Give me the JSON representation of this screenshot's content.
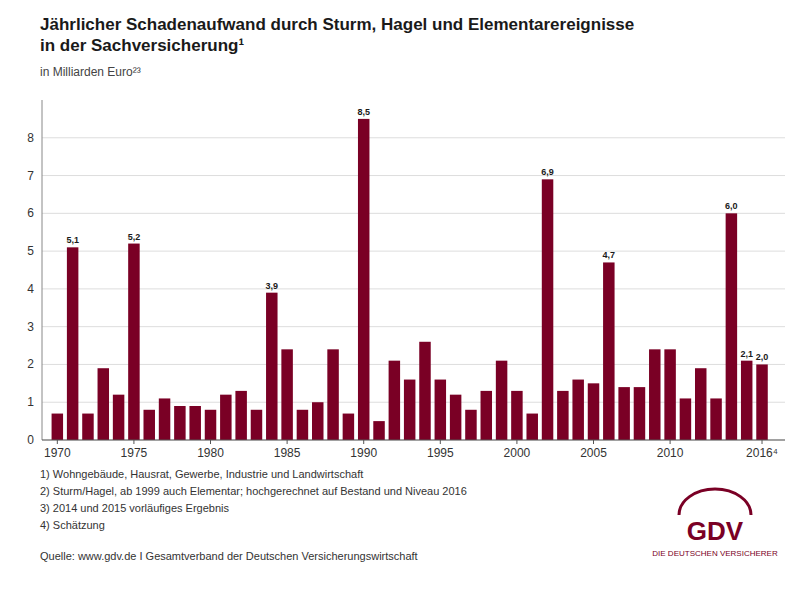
{
  "chart_data": {
    "type": "bar",
    "title": [
      "Jährlicher Schadenaufwand durch Sturm, Hagel und Elementarereignisse",
      "in der Sachversicherung¹"
    ],
    "subtitle": "in Milliarden Euro²³",
    "x": [
      1970,
      1971,
      1972,
      1973,
      1974,
      1975,
      1976,
      1977,
      1978,
      1979,
      1980,
      1981,
      1982,
      1983,
      1984,
      1985,
      1986,
      1987,
      1988,
      1989,
      1990,
      1991,
      1992,
      1993,
      1994,
      1995,
      1996,
      1997,
      1998,
      1999,
      2000,
      2001,
      2002,
      2003,
      2004,
      2005,
      2006,
      2007,
      2008,
      2009,
      2010,
      2011,
      2012,
      2013,
      2014,
      2015,
      2016
    ],
    "values": [
      0.7,
      5.1,
      0.7,
      1.9,
      1.2,
      5.2,
      0.8,
      1.1,
      0.9,
      0.9,
      0.8,
      1.2,
      1.3,
      0.8,
      3.9,
      2.4,
      0.8,
      1.0,
      2.4,
      0.7,
      8.5,
      0.5,
      2.1,
      1.6,
      2.6,
      1.6,
      1.2,
      0.8,
      1.3,
      2.1,
      1.3,
      0.7,
      6.9,
      1.3,
      1.6,
      1.5,
      4.7,
      1.4,
      1.4,
      2.4,
      2.4,
      1.1,
      1.9,
      1.1,
      6.0,
      2.1,
      2.0
    ],
    "value_labels": [
      null,
      "5,1",
      null,
      null,
      null,
      "5,2",
      null,
      null,
      null,
      null,
      null,
      null,
      null,
      null,
      "3,9",
      null,
      null,
      null,
      null,
      null,
      "8,5",
      null,
      null,
      null,
      null,
      null,
      null,
      null,
      null,
      null,
      null,
      null,
      "6,9",
      null,
      null,
      null,
      "4,7",
      null,
      null,
      null,
      null,
      null,
      null,
      null,
      "6,0",
      "2,1",
      "2,0"
    ],
    "data_labels": true,
    "color": "#7a0025",
    "xlim": [
      1969,
      2017.5
    ],
    "xticks": [
      1970,
      1975,
      1980,
      1985,
      1990,
      1995,
      2000,
      2005,
      2010,
      {
        "value": 2016,
        "label": "2016⁴"
      }
    ],
    "ylim": [
      0,
      9
    ],
    "yticks": [
      0,
      1,
      2,
      3,
      4,
      5,
      6,
      7,
      8
    ],
    "grid": true,
    "annotations": [
      "1)  Wohngebäude, Hausrat, Gewerbe, Industrie und Landwirtschaft",
      "2)  Sturm/Hagel, ab 1999 auch Elementar; hochgerechnet auf Bestand und Niveau 2016",
      "3)  2014 und 2015 vorläufiges Ergebnis",
      "4)  Schätzung",
      "Quelle: www.gdv.de I Gesamtverband der Deutschen Versicherungswirtschaft",
      "GDV",
      "DIE DEUTSCHEN VERSICHERER"
    ]
  }
}
